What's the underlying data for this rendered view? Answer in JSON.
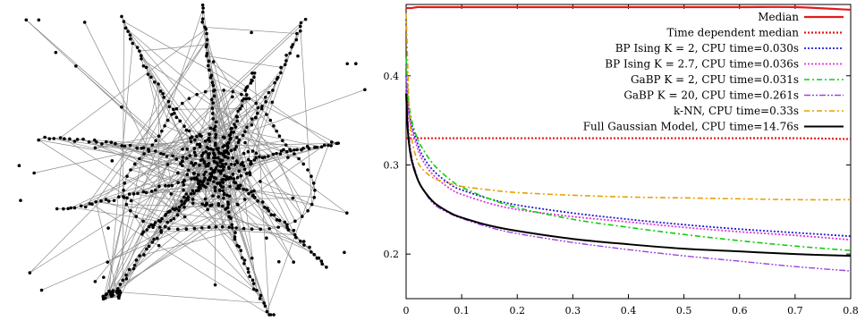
{
  "chart_data": [
    {
      "type": "graph",
      "panel": "left",
      "description_visible": false,
      "node_color": "#000000",
      "edge_color": "#8c8c8c"
    },
    {
      "type": "line",
      "panel": "right",
      "xlim": [
        0,
        0.8
      ],
      "ylim": [
        0.15,
        0.48
      ],
      "x_ticks": [
        0,
        0.1,
        0.2,
        0.3,
        0.4,
        0.5,
        0.6,
        0.7,
        0.8
      ],
      "x_tick_labels": [
        "0",
        "0.1",
        "0.2",
        "0.3",
        "0.4",
        "0.5",
        "0.6",
        "0.7",
        "0.8"
      ],
      "y_ticks": [
        0.2,
        0.3,
        0.4
      ],
      "y_tick_labels": [
        "0.2",
        "0.3",
        "0.4"
      ],
      "grid": false,
      "legend_position": "top-right",
      "x": [
        0,
        0.0025,
        0.005,
        0.01,
        0.02,
        0.03,
        0.05,
        0.08,
        0.1,
        0.15,
        0.2,
        0.3,
        0.4,
        0.5,
        0.6,
        0.7,
        0.8
      ],
      "series": [
        {
          "name": "Median",
          "color": "#e41a1c",
          "style": "solid",
          "width": 2.2,
          "values": [
            0.476,
            0.476,
            0.476,
            0.476,
            0.477,
            0.477,
            0.477,
            0.477,
            0.477,
            0.477,
            0.477,
            0.477,
            0.477,
            0.477,
            0.477,
            0.477,
            0.474
          ]
        },
        {
          "name": "Time dependent median",
          "color": "#e41a1c",
          "style": "dotted",
          "width": 2.2,
          "values": [
            0.33,
            0.33,
            0.33,
            0.33,
            0.33,
            0.33,
            0.33,
            0.33,
            0.33,
            0.33,
            0.33,
            0.33,
            0.33,
            0.33,
            0.33,
            0.33,
            0.329
          ]
        },
        {
          "name": "BP Ising K = 2, CPU time=0.030s",
          "color": "#1f1fcc",
          "style": "dotted",
          "width": 1.8,
          "values": [
            0.4,
            0.375,
            0.36,
            0.345,
            0.325,
            0.31,
            0.293,
            0.278,
            0.272,
            0.262,
            0.255,
            0.246,
            0.239,
            0.233,
            0.228,
            0.224,
            0.22
          ]
        },
        {
          "name": "BP Ising K = 2.7, CPU time=0.036s",
          "color": "#e033e0",
          "style": "dotted",
          "width": 1.8,
          "values": [
            0.39,
            0.37,
            0.355,
            0.34,
            0.32,
            0.305,
            0.288,
            0.273,
            0.267,
            0.257,
            0.25,
            0.242,
            0.236,
            0.23,
            0.225,
            0.221,
            0.216
          ]
        },
        {
          "name": "GaBP K = 2, CPU time=0.031s",
          "color": "#11cc11",
          "style": "dashdot",
          "width": 1.6,
          "values": [
            0.42,
            0.39,
            0.37,
            0.35,
            0.33,
            0.318,
            0.3,
            0.283,
            0.275,
            0.262,
            0.252,
            0.239,
            0.23,
            0.222,
            0.215,
            0.209,
            0.204
          ]
        },
        {
          "name": "GaBP K = 20, CPU time=0.261s",
          "color": "#9c44dd",
          "style": "dashdotdot",
          "width": 1.4,
          "values": [
            0.4,
            0.36,
            0.335,
            0.31,
            0.287,
            0.273,
            0.256,
            0.245,
            0.24,
            0.23,
            0.223,
            0.213,
            0.205,
            0.198,
            0.192,
            0.186,
            0.181
          ]
        },
        {
          "name": "k-NN, CPU time=0.33s",
          "color": "#e6a000",
          "style": "dashdot",
          "width": 1.6,
          "values": [
            0.47,
            0.42,
            0.37,
            0.33,
            0.305,
            0.295,
            0.285,
            0.279,
            0.276,
            0.272,
            0.269,
            0.266,
            0.264,
            0.263,
            0.262,
            0.261,
            0.261
          ]
        },
        {
          "name": "Full Gaussian Model, CPU time=14.76s",
          "color": "#000000",
          "style": "solid",
          "width": 2.0,
          "values": [
            0.38,
            0.345,
            0.325,
            0.305,
            0.285,
            0.273,
            0.258,
            0.246,
            0.241,
            0.232,
            0.226,
            0.217,
            0.211,
            0.206,
            0.203,
            0.2,
            0.198
          ]
        }
      ]
    }
  ]
}
